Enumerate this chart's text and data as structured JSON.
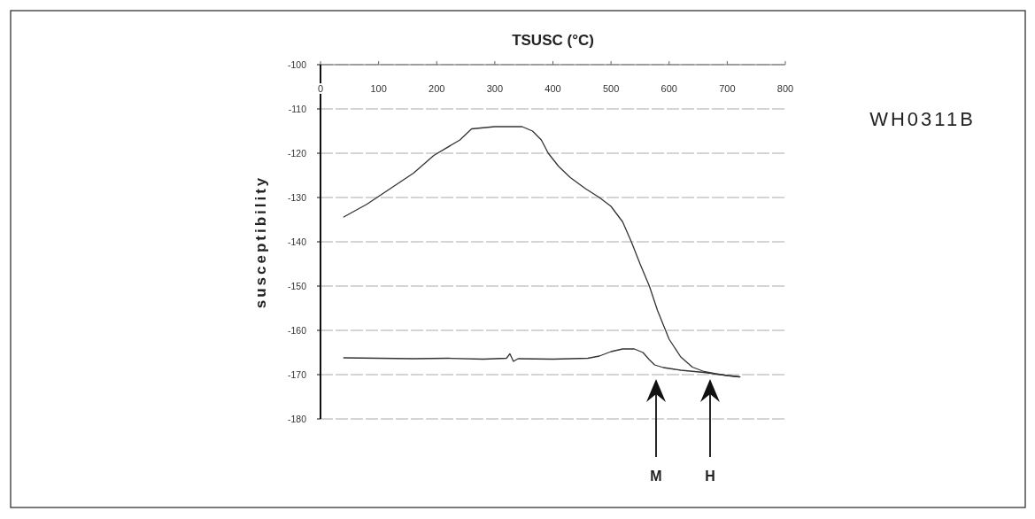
{
  "chart_data": {
    "type": "line",
    "xlabel": "TSUSC (°C)",
    "ylabel": "susceptibility",
    "xlim": [
      0,
      800
    ],
    "xticks": [
      0,
      100,
      200,
      300,
      400,
      500,
      600,
      700,
      800
    ],
    "ylim": [
      -180,
      -100
    ],
    "yticks": [
      -100,
      -110,
      -120,
      -130,
      -140,
      -150,
      -160,
      -170,
      -180
    ],
    "grid": "y",
    "marker": "none",
    "line_style": "solid",
    "series": [
      {
        "color": "#333333",
        "x": [
          40,
          80,
          120,
          160,
          195,
          240,
          260,
          300,
          347,
          365,
          380,
          392,
          410,
          430,
          456,
          480,
          500,
          520,
          535,
          550,
          566,
          580,
          600,
          620,
          640,
          660,
          680,
          700,
          720
        ],
        "values": [
          -134.4,
          -131.5,
          -128,
          -124.5,
          -120.5,
          -117,
          -114.5,
          -114,
          -114,
          -115,
          -117,
          -120,
          -123,
          -125.5,
          -128,
          -130,
          -132,
          -135.5,
          -140,
          -145,
          -150,
          -155.5,
          -162,
          -166,
          -168.3,
          -169.3,
          -169.8,
          -170.2,
          -170.5
        ]
      },
      {
        "color": "#333333",
        "x": [
          40,
          100,
          160,
          220,
          280,
          320,
          326,
          332,
          340,
          400,
          460,
          480,
          500,
          520,
          540,
          555,
          565,
          575,
          590,
          620,
          660,
          700,
          722
        ],
        "values": [
          -166.2,
          -166.3,
          -166.4,
          -166.3,
          -166.5,
          -166.3,
          -165.3,
          -167,
          -166.4,
          -166.5,
          -166.3,
          -165.8,
          -164.8,
          -164.2,
          -164.2,
          -165,
          -166.5,
          -167.8,
          -168.4,
          -169,
          -169.5,
          -170.2,
          -170.5
        ]
      }
    ],
    "annotations": [
      "WH0311B",
      "M",
      "H"
    ]
  }
}
